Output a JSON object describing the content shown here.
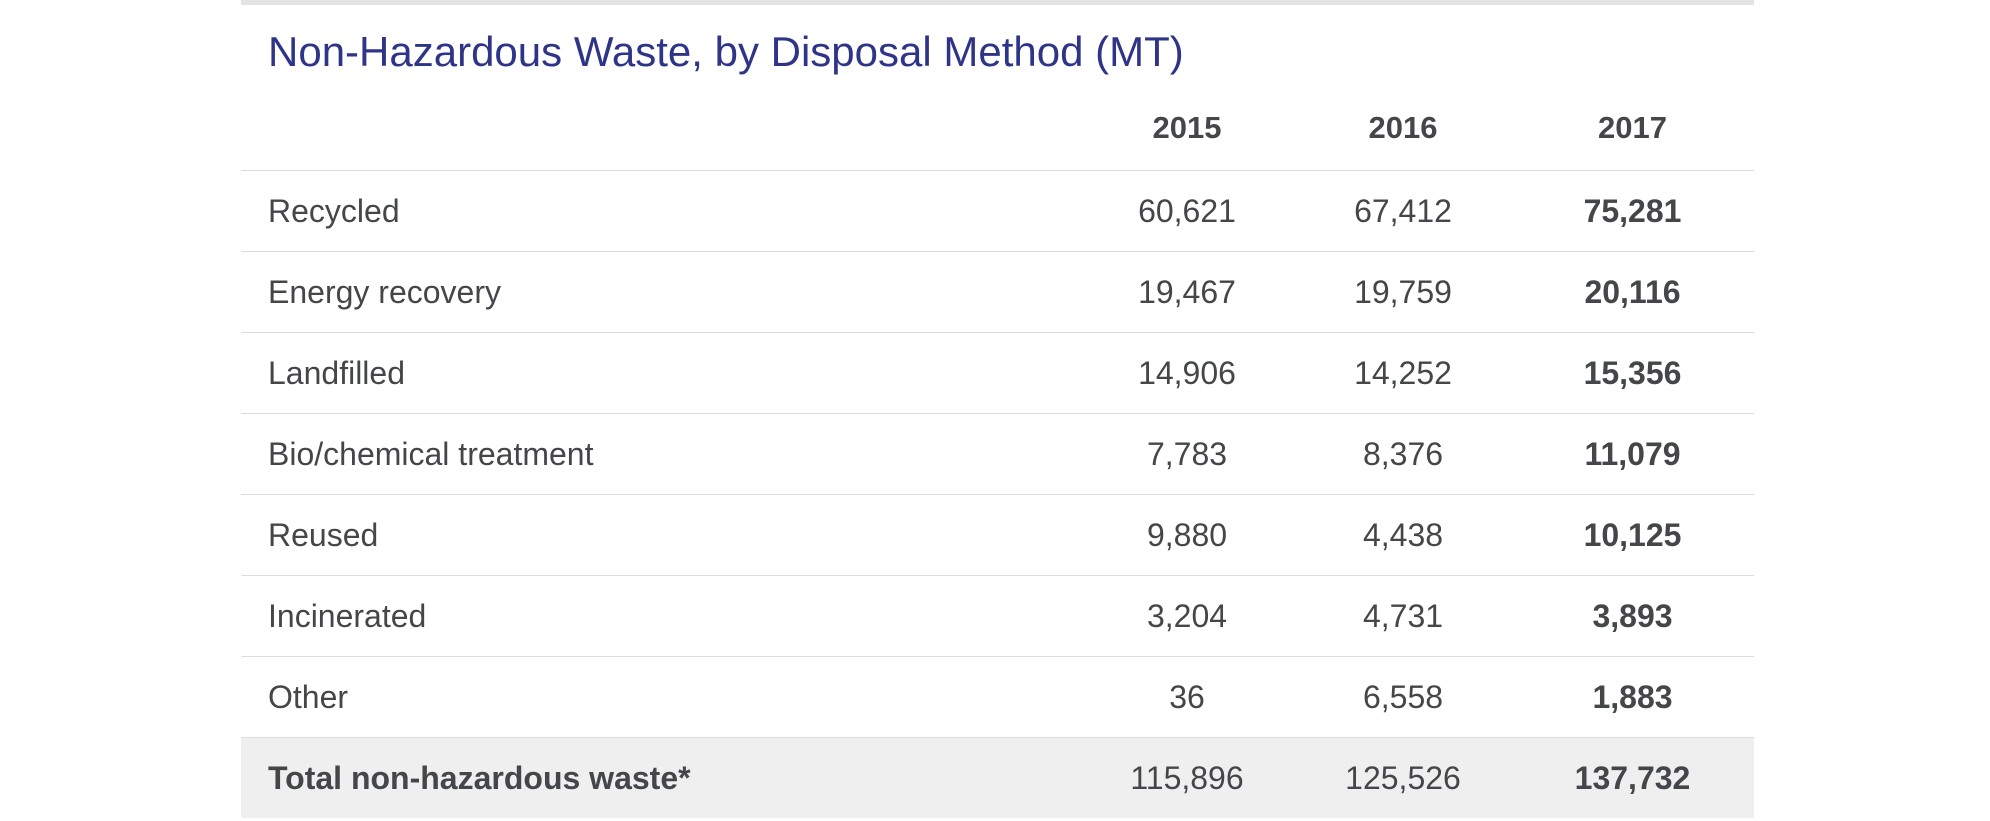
{
  "title": "Non-Hazardous Waste, by Disposal Method (MT)",
  "columns": [
    "",
    "2015",
    "2016",
    "2017"
  ],
  "rows": [
    {
      "label": "Recycled",
      "values": [
        "60,621",
        "67,412",
        "75,281"
      ]
    },
    {
      "label": "Energy recovery",
      "values": [
        "19,467",
        "19,759",
        "20,116"
      ]
    },
    {
      "label": "Landfilled",
      "values": [
        "14,906",
        "14,252",
        "15,356"
      ]
    },
    {
      "label": "Bio/chemical treatment",
      "values": [
        "7,783",
        "8,376",
        "11,079"
      ]
    },
    {
      "label": "Reused",
      "values": [
        "9,880",
        "4,438",
        "10,125"
      ]
    },
    {
      "label": "Incinerated",
      "values": [
        "3,204",
        "4,731",
        "3,893"
      ]
    },
    {
      "label": "Other",
      "values": [
        "36",
        "6,558",
        "1,883"
      ]
    }
  ],
  "total": {
    "label": "Total non-hazardous waste*",
    "values": [
      "115,896",
      "125,526",
      "137,732"
    ]
  },
  "colors": {
    "title": "#2e3487",
    "text": "#45464a",
    "total_bg": "#efefef",
    "top_rule": "#e3e3e3"
  }
}
